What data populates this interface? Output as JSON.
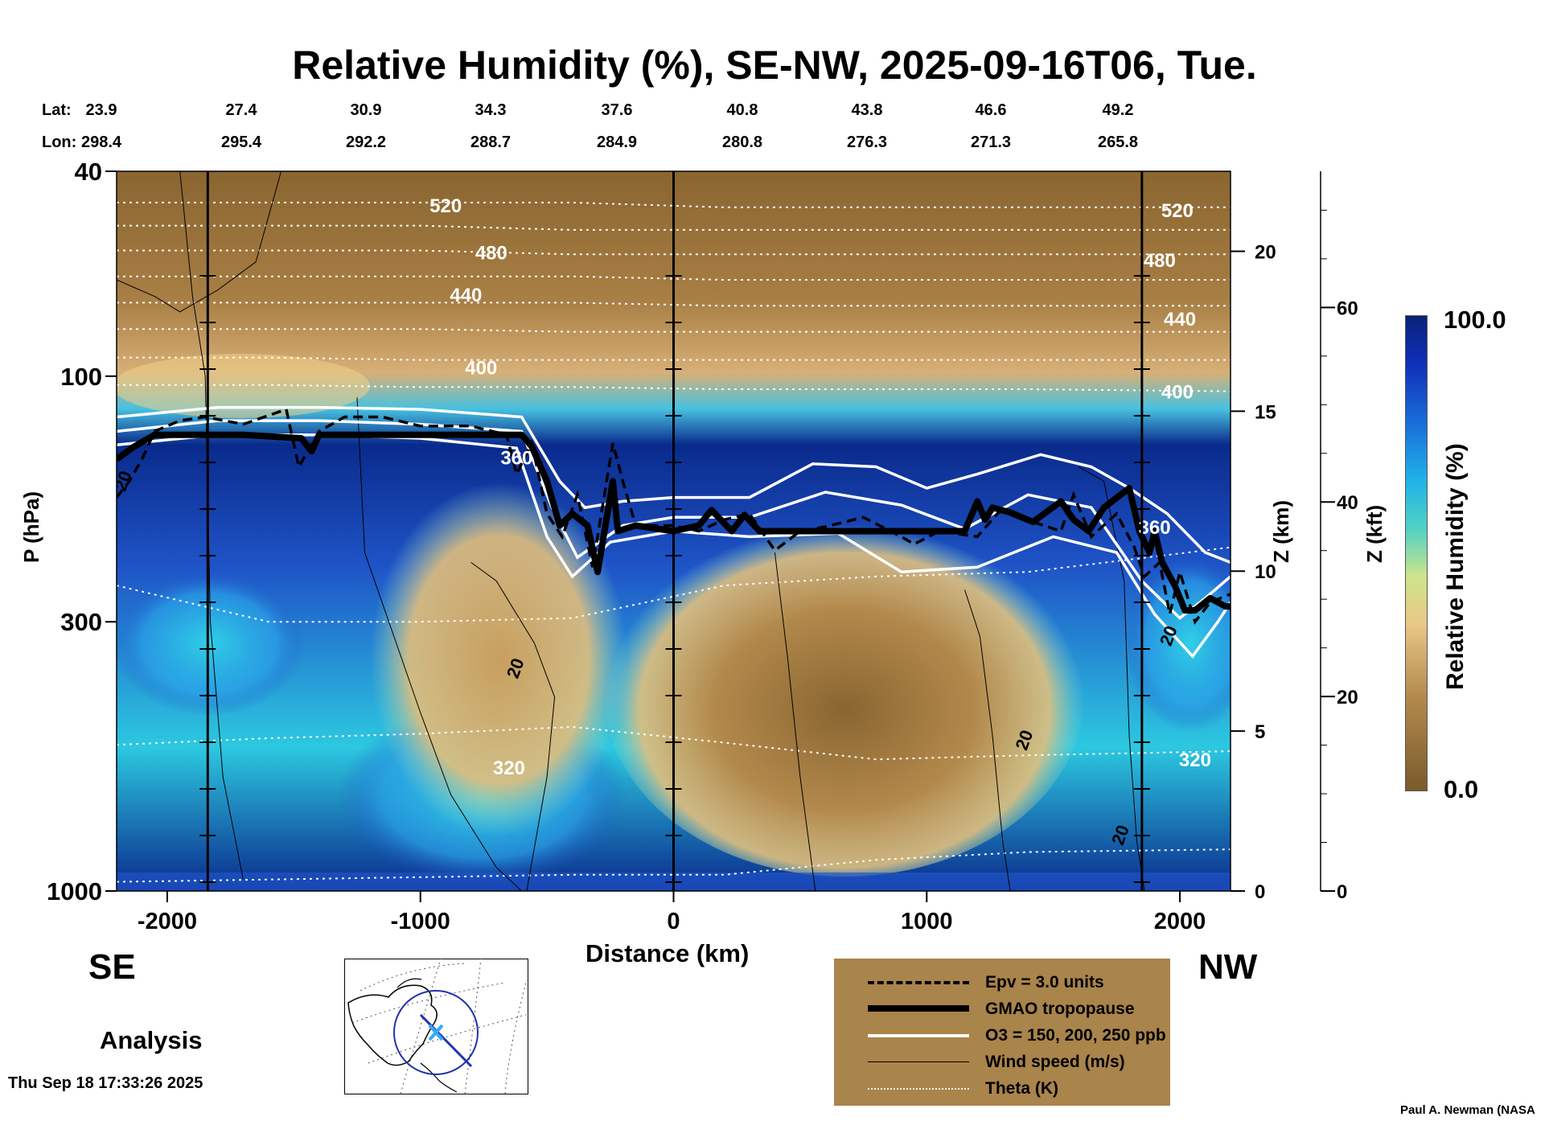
{
  "title": "Relative Humidity (%), SE-NW, 2025-09-16T06, Tue.",
  "lat_header": "Lat:",
  "lon_header": "Lon:",
  "lat_values": [
    "23.9",
    "27.4",
    "30.9",
    "34.3",
    "37.6",
    "40.8",
    "43.8",
    "46.6",
    "49.2"
  ],
  "lon_values": [
    "298.4",
    "295.4",
    "292.2",
    "288.7",
    "284.9",
    "280.8",
    "276.3",
    "271.3",
    "265.8"
  ],
  "left_direction": "SE",
  "right_direction": "NW",
  "analysis_label": "Analysis",
  "timestamp": "Thu Sep 18 17:33:26 2025",
  "credit": "Paul A. Newman (NASA",
  "colors": {
    "moist": "#0a2a8c",
    "dry": "#8a6530",
    "legend_bg": "#a9844b",
    "tropopause": "#000000",
    "ozone": "#ffffff",
    "theta": "#ffffff"
  },
  "legend": [
    {
      "label": "Epv = 3.0 units",
      "style": "dashed-black"
    },
    {
      "label": "GMAO tropopause",
      "style": "thick-black"
    },
    {
      "label": "O3 = 150, 200, 250 ppb",
      "style": "white"
    },
    {
      "label": "Wind speed (m/s)",
      "style": "thin-black"
    },
    {
      "label": "Theta (K)",
      "style": "dotted-white"
    }
  ],
  "chart_data": {
    "type": "heatmap",
    "title": "Relative Humidity (%), SE-NW, 2025-09-16T06, Tue.",
    "xlabel": "Distance (km)",
    "ylabel": "P (hPa)",
    "right_axis_label": "Z (km)",
    "far_right_axis_label": "Z (kft)",
    "xlim": [
      -2200,
      2200
    ],
    "ylim": [
      1000,
      40
    ],
    "y_scale": "log",
    "x_ticks": [
      "-2000",
      "-1000",
      "0",
      "1000",
      "2000"
    ],
    "x_tick_values": [
      -2000,
      -1000,
      0,
      1000,
      2000
    ],
    "y_ticks": [
      "40",
      "100",
      "300",
      "1000"
    ],
    "y_tick_values": [
      40,
      100,
      300,
      1000
    ],
    "z_km_ticks": [
      "0",
      "5",
      "10",
      "15",
      "20"
    ],
    "z_km_values": [
      0,
      5,
      10,
      15,
      20
    ],
    "z_kft_ticks": [
      "0",
      "20",
      "40",
      "60"
    ],
    "z_kft_values": [
      0,
      20,
      40,
      60
    ],
    "colorbar": {
      "label": "Relative Humidity (%)",
      "min": "0.0",
      "max": "100.0"
    },
    "theta_labels": [
      {
        "text": "520",
        "x": -900,
        "p": 47
      },
      {
        "text": "480",
        "x": -720,
        "p": 58
      },
      {
        "text": "440",
        "x": -820,
        "p": 70
      },
      {
        "text": "400",
        "x": -760,
        "p": 97
      },
      {
        "text": "320",
        "x": -650,
        "p": 580
      },
      {
        "text": "360",
        "x": -620,
        "p": 145
      },
      {
        "text": "520",
        "x": 1990,
        "p": 48
      },
      {
        "text": "480",
        "x": 1920,
        "p": 60
      },
      {
        "text": "440",
        "x": 2000,
        "p": 78
      },
      {
        "text": "400",
        "x": 1990,
        "p": 108
      },
      {
        "text": "360",
        "x": 1900,
        "p": 198
      },
      {
        "text": "320",
        "x": 2060,
        "p": 560
      }
    ],
    "wind_labels": [
      {
        "text": "20",
        "x": -620,
        "p": 370
      },
      {
        "text": "20",
        "x": 1390,
        "p": 510
      },
      {
        "text": "20",
        "x": 1770,
        "p": 780
      },
      {
        "text": "20",
        "x": 1960,
        "p": 320
      },
      {
        "text": "20",
        "x": -2170,
        "p": 160
      }
    ],
    "tropopause": {
      "x": [
        -2200,
        -2130,
        -2050,
        -1700,
        -1470,
        -1430,
        -1400,
        -600,
        -560,
        -500,
        -450,
        -400,
        -340,
        -300,
        -240,
        -220,
        -150,
        0,
        100,
        150,
        230,
        280,
        340,
        400,
        700,
        900,
        1150,
        1200,
        1230,
        1260,
        1330,
        1420,
        1530,
        1580,
        1640,
        1700,
        1800,
        1840,
        1880,
        1900,
        1930,
        1980,
        2020,
        2060,
        2120,
        2180,
        2200
      ],
      "p": [
        145,
        137,
        130,
        130,
        132,
        140,
        130,
        130,
        137,
        160,
        195,
        185,
        195,
        240,
        160,
        200,
        195,
        200,
        195,
        182,
        200,
        186,
        200,
        200,
        200,
        200,
        200,
        175,
        190,
        180,
        184,
        192,
        175,
        190,
        200,
        180,
        165,
        200,
        220,
        200,
        230,
        255,
        285,
        285,
        270,
        280,
        280
      ]
    },
    "ozone": [
      {
        "label": "150 ppb",
        "x": [
          -2200,
          -1800,
          -1400,
          -1000,
          -600,
          -450,
          -350,
          -200,
          0,
          300,
          550,
          800,
          1000,
          1200,
          1450,
          1650,
          1800,
          1950,
          2100,
          2200
        ],
        "p": [
          120,
          115,
          115,
          116,
          120,
          160,
          180,
          175,
          172,
          172,
          148,
          150,
          165,
          155,
          142,
          150,
          165,
          185,
          220,
          230
        ]
      },
      {
        "label": "200 ppb",
        "x": [
          -2200,
          -1800,
          -1400,
          -1000,
          -600,
          -480,
          -380,
          -200,
          0,
          300,
          600,
          900,
          1150,
          1400,
          1650,
          1850,
          2000,
          2100,
          2200
        ],
        "p": [
          128,
          122,
          122,
          124,
          128,
          180,
          225,
          195,
          188,
          188,
          168,
          178,
          198,
          170,
          180,
          250,
          295,
          270,
          245
        ]
      },
      {
        "label": "250 ppb",
        "x": [
          -2200,
          -1800,
          -1400,
          -1000,
          -620,
          -500,
          -400,
          -250,
          0,
          300,
          650,
          900,
          1200,
          1500,
          1750,
          1900,
          2050,
          2150,
          2200
        ],
        "p": [
          136,
          130,
          130,
          132,
          138,
          205,
          245,
          210,
          200,
          205,
          202,
          240,
          235,
          205,
          220,
          290,
          350,
          300,
          275
        ]
      }
    ],
    "epv": {
      "x": [
        -2200,
        -2150,
        -2100,
        -2050,
        -1950,
        -1850,
        -1700,
        -1530,
        -1480,
        -1400,
        -1300,
        -1150,
        -1000,
        -800,
        -660,
        -620,
        -560,
        -500,
        -440,
        -380,
        -320,
        -240,
        -200,
        -150,
        0,
        100,
        200,
        300,
        400,
        500,
        600,
        750,
        900,
        950,
        1050,
        1200,
        1300,
        1420,
        1530,
        1580,
        1650,
        1750,
        1820,
        1860,
        1920,
        1960,
        2000,
        2060,
        2120,
        2200
      ],
      "p": [
        172,
        160,
        145,
        128,
        122,
        120,
        124,
        116,
        150,
        128,
        120,
        120,
        125,
        125,
        130,
        155,
        135,
        185,
        205,
        170,
        235,
        135,
        160,
        195,
        195,
        200,
        190,
        185,
        218,
        200,
        196,
        188,
        205,
        212,
        200,
        205,
        180,
        192,
        200,
        170,
        205,
        185,
        215,
        245,
        230,
        290,
        240,
        300,
        275,
        265
      ]
    },
    "theta_levels": [
      {
        "p": [
          46,
          46,
          46,
          46,
          47,
          47,
          47,
          47
        ]
      },
      {
        "p": [
          51,
          51,
          51,
          52,
          52,
          52,
          52,
          52
        ]
      },
      {
        "p": [
          57,
          57,
          57,
          58,
          58,
          58,
          58,
          58
        ]
      },
      {
        "p": [
          64,
          64,
          64,
          64,
          65,
          65,
          65,
          65
        ]
      },
      {
        "p": [
          72,
          72,
          72,
          72,
          73,
          73,
          73,
          73
        ]
      },
      {
        "p": [
          81,
          81,
          81,
          82,
          82,
          82,
          82,
          82
        ]
      },
      {
        "p": [
          92,
          92,
          93,
          93,
          93,
          93,
          93,
          93
        ]
      },
      {
        "p": [
          104,
          104,
          105,
          105,
          106,
          106,
          106,
          107
        ]
      },
      {
        "p": [
          255,
          300,
          300,
          295,
          255,
          245,
          240,
          215
        ]
      },
      {
        "p": [
          520,
          505,
          495,
          480,
          515,
          555,
          545,
          535
        ]
      },
      {
        "p": [
          960,
          950,
          940,
          930,
          930,
          870,
          840,
          830
        ]
      }
    ],
    "theta_x": [
      -2200,
      -1600,
      -1000,
      -400,
      200,
      800,
      1400,
      2200
    ]
  }
}
